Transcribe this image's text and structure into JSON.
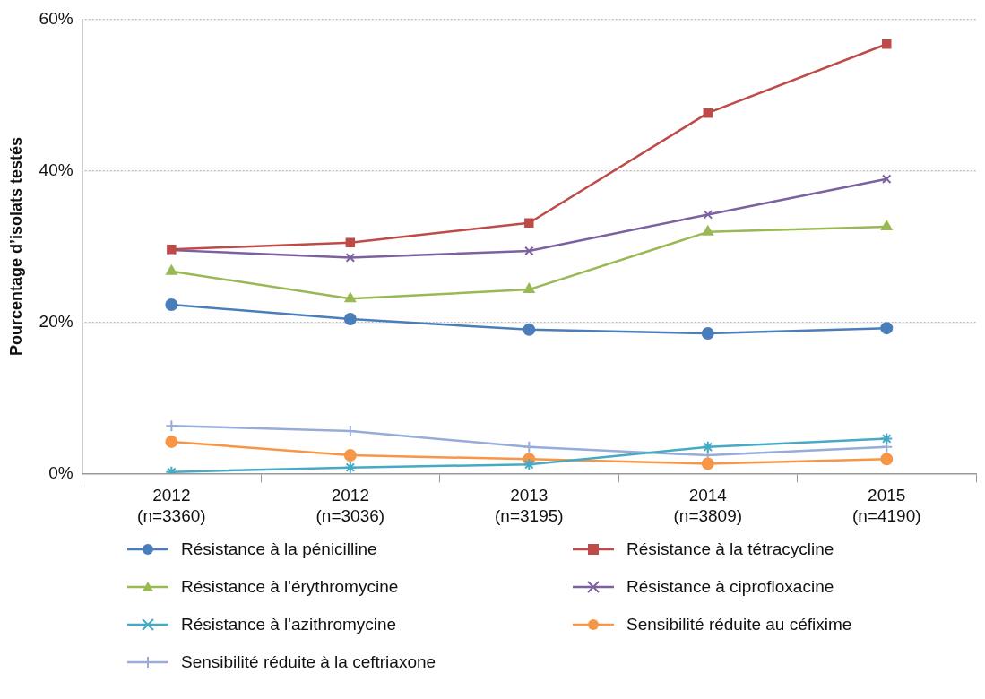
{
  "chart_data": {
    "type": "line",
    "ylabel": "Pourcentage d’isolats testés",
    "categories": [
      "2012 (n=3360)",
      "2012 (n=3036)",
      "2013 (n=3195)",
      "2014 (n=3809)",
      "2015 (n=4190)"
    ],
    "ylim": [
      0,
      60
    ],
    "yticks": [
      {
        "value": 0,
        "label": "0%"
      },
      {
        "value": 20,
        "label": "20%"
      },
      {
        "value": 40,
        "label": "40%"
      },
      {
        "value": 60,
        "label": "60%"
      }
    ],
    "grid": "y",
    "legend": "bottom",
    "series": [
      {
        "name": "Résistance à la pénicilline",
        "color": "#4a7ebb",
        "marker": "circle",
        "values": [
          22.3,
          20.4,
          19.0,
          18.5,
          19.2
        ]
      },
      {
        "name": "Résistance à la tétracycline",
        "color": "#be4b48",
        "marker": "square",
        "values": [
          29.6,
          30.5,
          33.1,
          47.6,
          56.7
        ]
      },
      {
        "name": "Résistance à l'érythromycine",
        "color": "#98b954",
        "marker": "triangle",
        "values": [
          26.7,
          23.1,
          24.3,
          31.9,
          32.6
        ]
      },
      {
        "name": "Résistance à ciprofloxacine",
        "color": "#7d60a0",
        "marker": "x",
        "values": [
          29.5,
          28.5,
          29.4,
          34.2,
          38.9
        ]
      },
      {
        "name": "Résistance à l'azithromycine",
        "color": "#46aac5",
        "marker": "cross",
        "values": [
          0.2,
          0.8,
          1.2,
          3.5,
          4.6
        ]
      },
      {
        "name": "Sensibilité réduite au céfixime",
        "color": "#f79646",
        "marker": "circle",
        "values": [
          4.2,
          2.4,
          1.9,
          1.3,
          1.9
        ]
      },
      {
        "name": "Sensibilité réduite à la ceftriaxone",
        "color": "#97acd8",
        "marker": "plus",
        "values": [
          6.3,
          5.6,
          3.5,
          2.4,
          3.5
        ]
      }
    ]
  }
}
